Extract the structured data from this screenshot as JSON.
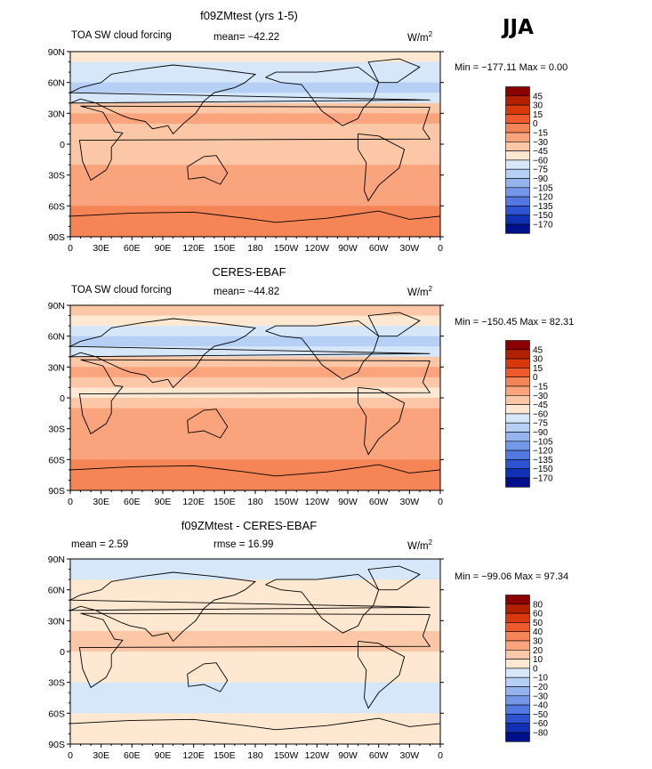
{
  "season": "JJA",
  "units_base": "W/m",
  "units_exp": "2",
  "panels": [
    {
      "title": "f09ZMtest (yrs 1-5)",
      "left_label": "TOA SW cloud forcing",
      "mean_text": "mean= −42.22",
      "minmax": "Min = −177.11 Max =    0.00",
      "colorbar": [
        "45",
        "30",
        "15",
        "0",
        "−15",
        "−30",
        "−45",
        "−60",
        "−75",
        "−90",
        "−105",
        "−120",
        "−135",
        "−150",
        "−170"
      ],
      "colors": [
        "#8b0000",
        "#b22000",
        "#d8380c",
        "#ee5a2c",
        "#f58456",
        "#f9a47c",
        "#fcc7a6",
        "#fee8d2",
        "#d6e7fa",
        "#b6cff4",
        "#95b4ef",
        "#7597ea",
        "#5478e2",
        "#2d52d2",
        "#1230b6",
        "#00108c"
      ]
    },
    {
      "title": "CERES-EBAF",
      "left_label": "TOA SW cloud forcing",
      "mean_text": "mean= −44.82",
      "minmax": "Min = −150.45 Max =   82.31",
      "colorbar": [
        "45",
        "30",
        "15",
        "0",
        "−15",
        "−30",
        "−45",
        "−60",
        "−75",
        "−90",
        "−105",
        "−120",
        "−135",
        "−150",
        "−170"
      ],
      "colors": [
        "#8b0000",
        "#b22000",
        "#d8380c",
        "#ee5a2c",
        "#f58456",
        "#f9a47c",
        "#fcc7a6",
        "#fee8d2",
        "#d6e7fa",
        "#b6cff4",
        "#95b4ef",
        "#7597ea",
        "#5478e2",
        "#2d52d2",
        "#1230b6",
        "#00108c"
      ]
    },
    {
      "title": "f09ZMtest - CERES-EBAF",
      "left_label": "mean =    2.59",
      "mean_text": "rmse =   16.99",
      "minmax": "Min = −99.06 Max =   97.34",
      "colorbar": [
        "80",
        "60",
        "50",
        "40",
        "30",
        "20",
        "10",
        "0",
        "−10",
        "−20",
        "−30",
        "−40",
        "−50",
        "−60",
        "−80"
      ],
      "colors": [
        "#8b0000",
        "#b22000",
        "#d8380c",
        "#ee5a2c",
        "#f58456",
        "#f9a47c",
        "#fcc7a6",
        "#fee8d2",
        "#d6e7fa",
        "#b6cff4",
        "#95b4ef",
        "#7597ea",
        "#5478e2",
        "#2d52d2",
        "#1230b6",
        "#00108c"
      ]
    }
  ],
  "axes": {
    "y_ticks": [
      "90N",
      "60N",
      "30N",
      "0",
      "30S",
      "60S",
      "90S"
    ],
    "x_ticks": [
      "0",
      "30E",
      "60E",
      "90E",
      "120E",
      "150E",
      "180",
      "150W",
      "120W",
      "90W",
      "60W",
      "30W",
      "0"
    ]
  },
  "chart_data": [
    {
      "type": "heatmap",
      "title": "f09ZMtest (yrs 1-5)",
      "variable": "TOA SW cloud forcing",
      "units": "W/m2",
      "mean": -42.22,
      "min": -177.11,
      "max": 0.0,
      "x_range": [
        0,
        360
      ],
      "y_range": [
        -90,
        90
      ],
      "contour_levels": [
        45,
        30,
        15,
        0,
        -15,
        -30,
        -45,
        -60,
        -75,
        -90,
        -105,
        -120,
        -135,
        -150,
        -170
      ],
      "zonal_profile": {
        "lat": [
          85,
          75,
          65,
          55,
          45,
          35,
          25,
          15,
          5,
          -5,
          -15,
          -25,
          -35,
          -45,
          -55,
          -65,
          -75,
          -85
        ],
        "value": [
          -55,
          -65,
          -75,
          -85,
          -70,
          -45,
          -30,
          -40,
          -45,
          -40,
          -35,
          -30,
          -30,
          -25,
          -20,
          -15,
          -10,
          -5
        ]
      }
    },
    {
      "type": "heatmap",
      "title": "CERES-EBAF",
      "variable": "TOA SW cloud forcing",
      "units": "W/m2",
      "mean": -44.82,
      "min": -150.45,
      "max": 82.31,
      "x_range": [
        0,
        360
      ],
      "y_range": [
        -90,
        90
      ],
      "contour_levels": [
        45,
        30,
        15,
        0,
        -15,
        -30,
        -45,
        -60,
        -75,
        -90,
        -105,
        -120,
        -135,
        -150,
        -170
      ],
      "zonal_profile": {
        "lat": [
          85,
          75,
          65,
          55,
          45,
          35,
          25,
          15,
          5,
          -5,
          -15,
          -25,
          -35,
          -45,
          -55,
          -65,
          -75,
          -85
        ],
        "value": [
          -40,
          -55,
          -75,
          -90,
          -75,
          -45,
          -30,
          -45,
          -55,
          -40,
          -30,
          -30,
          -30,
          -25,
          -20,
          -15,
          -10,
          -5
        ]
      }
    },
    {
      "type": "heatmap",
      "title": "f09ZMtest - CERES-EBAF",
      "units": "W/m2",
      "mean": 2.59,
      "rmse": 16.99,
      "min": -99.06,
      "max": 97.34,
      "x_range": [
        0,
        360
      ],
      "y_range": [
        -90,
        90
      ],
      "contour_levels": [
        80,
        60,
        50,
        40,
        30,
        20,
        10,
        0,
        -10,
        -20,
        -30,
        -40,
        -50,
        -60,
        -80
      ],
      "zonal_profile": {
        "lat": [
          85,
          75,
          65,
          55,
          45,
          35,
          25,
          15,
          5,
          -5,
          -15,
          -25,
          -35,
          -45,
          -55,
          -65,
          -75,
          -85
        ],
        "value": [
          -5,
          -10,
          0,
          5,
          5,
          0,
          0,
          10,
          15,
          5,
          0,
          0,
          -5,
          -5,
          -5,
          0,
          0,
          0
        ]
      }
    }
  ]
}
